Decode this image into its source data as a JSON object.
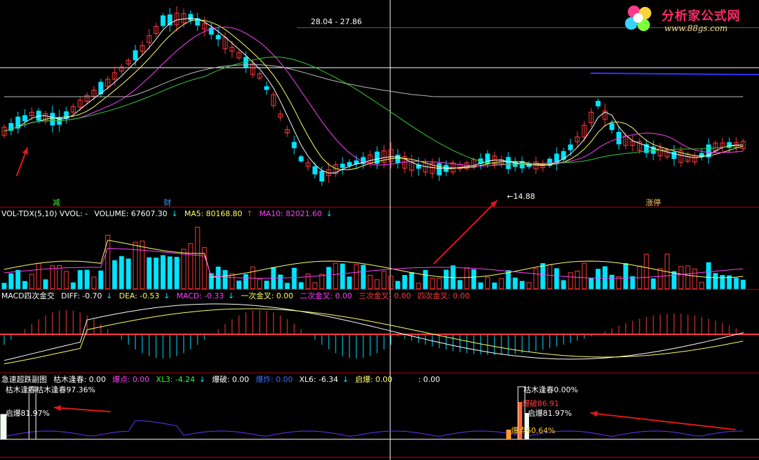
{
  "logo": {
    "title": "分析家公式网",
    "url": "www.88gs.com",
    "icon": "flower-logo-icon"
  },
  "price_panel": {
    "price_tag": "28.04 - 27.86",
    "low_tag": "←14.88",
    "labels": [
      "减",
      "财",
      "涨停"
    ]
  },
  "vol_panel": {
    "title": "VOL-TDX(5,10) VVOL: -",
    "volume_label": "VOLUME: 67607.30",
    "ma5_label": "MA5: 80168.80",
    "ma10_label": "MA10: 82021.60"
  },
  "macd_panel": {
    "title": "MACD四次金交",
    "diff_label": "DIFF: -0.70",
    "dea_label": "DEA: -0.53",
    "macd_label": "MACD: -0.33",
    "g1_label": "一次金叉: 0.00",
    "g2_label": "二次金叉: 0.00",
    "g3_label": "三次金叉: 0.00",
    "g4_label": "四次金叉: 0.00"
  },
  "bottom_panel": {
    "title": "急速超跌副图",
    "kmfc_label": "枯木逢春: 0.00",
    "bd_label": "爆点: 0.00",
    "xl3_label": "XL3: -4.24",
    "bp_label": "爆破: 0.00",
    "bz_label": "爆炸: 0.00",
    "xl6_label": "XL6: -6.34",
    "qb_label": "启爆: 0.00",
    "tail_label": ": 0.00",
    "left_kmfc": "枯木逢春枯木逢春97.36%",
    "left_qb": "启爆81.97%",
    "right_kmfc": "枯木逢春0.00%",
    "right_bp": "爆破86.91",
    "right_qb": "启爆81.97%",
    "right_bd": "爆点60.64%"
  },
  "colors": {
    "up": "#ff3b3b",
    "down": "#00e5ff",
    "ma_white": "#ffffff",
    "ma_yellow": "#ffff66",
    "ma_magenta": "#ff40ff",
    "ma_green": "#33cc33",
    "ma_blue": "#3333ff",
    "grid_red": "#c00000",
    "arrow": "#e01818"
  }
}
